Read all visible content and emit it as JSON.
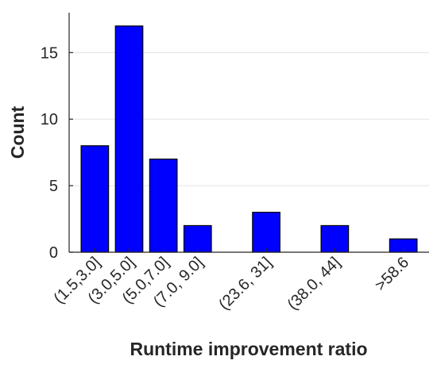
{
  "chart_data": {
    "type": "bar",
    "title": "",
    "xlabel": "Runtime improvement ratio",
    "ylabel": "Count",
    "categories": [
      "(1.5,3.0]",
      "(3.0,5.0]",
      "(5.0,7.0]",
      "(7.0, 9.0]",
      "(23.6, 31]",
      "(38.0, 44]",
      ">58.6"
    ],
    "positions": [
      1,
      2,
      3,
      4,
      6,
      8,
      10
    ],
    "values": [
      8,
      17,
      7,
      2,
      3,
      2,
      1
    ],
    "ylim": [
      0,
      18
    ],
    "xlim": [
      0.25,
      10.75
    ],
    "yticks": [
      0,
      5,
      10,
      15
    ],
    "grid": "horizontal",
    "bar_color": "#0000ff",
    "edge_color": "#000000"
  }
}
